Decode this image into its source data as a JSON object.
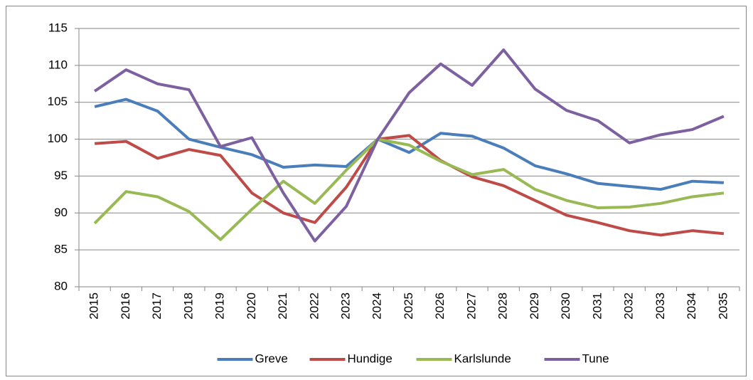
{
  "chart_data": {
    "type": "line",
    "categories": [
      "2015",
      "2016",
      "2017",
      "2018",
      "2019",
      "2020",
      "2021",
      "2022",
      "2023",
      "2024",
      "2025",
      "2026",
      "2027",
      "2028",
      "2029",
      "2030",
      "2031",
      "2032",
      "2033",
      "2034",
      "2035"
    ],
    "series": [
      {
        "name": "Greve",
        "color": "#4a7ebb",
        "values": [
          104.4,
          105.4,
          103.8,
          100.0,
          98.9,
          97.9,
          96.2,
          96.5,
          96.3,
          100,
          98.2,
          100.8,
          100.4,
          98.8,
          96.4,
          95.3,
          94.0,
          93.6,
          93.2,
          94.3,
          94.1
        ]
      },
      {
        "name": "Hundige",
        "color": "#be4b48",
        "values": [
          99.4,
          99.7,
          97.4,
          98.6,
          97.8,
          92.7,
          90.0,
          88.7,
          93.5,
          100,
          100.5,
          97.1,
          94.9,
          93.7,
          91.7,
          89.7,
          88.7,
          87.6,
          87.0,
          87.6,
          87.2
        ]
      },
      {
        "name": "Karlslunde",
        "color": "#98b954",
        "values": [
          88.6,
          92.9,
          92.2,
          90.2,
          86.4,
          90.5,
          94.3,
          91.3,
          95.8,
          100,
          99.2,
          97.0,
          95.2,
          95.9,
          93.2,
          91.7,
          90.7,
          90.8,
          91.3,
          92.2,
          92.7
        ]
      },
      {
        "name": "Tune",
        "color": "#7d60a0",
        "values": [
          106.5,
          109.4,
          107.5,
          106.7,
          99.0,
          100.2,
          92.7,
          86.2,
          90.9,
          100,
          106.3,
          110.2,
          107.3,
          112.1,
          106.8,
          103.9,
          102.5,
          99.5,
          100.6,
          101.3,
          103.1
        ]
      }
    ],
    "ylim": [
      80,
      115
    ],
    "yticks": [
      80,
      85,
      90,
      95,
      100,
      105,
      110,
      115
    ],
    "grid": true,
    "legend": "bottom"
  }
}
